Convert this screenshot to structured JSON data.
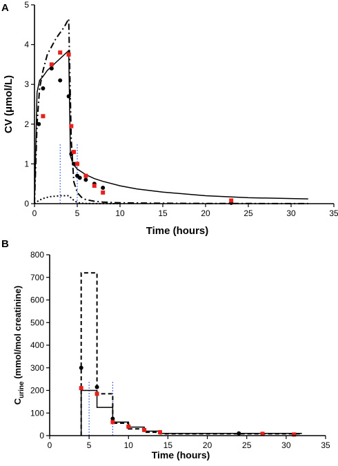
{
  "chart_data": [
    {
      "panel": "A",
      "type": "line",
      "xlabel": "Time (hours)",
      "ylabel": "CV (μmol/L)",
      "xlim": [
        0,
        35
      ],
      "ylim": [
        0,
        5
      ],
      "xticks": [
        0,
        5,
        10,
        15,
        20,
        25,
        30,
        35
      ],
      "yticks": [
        0,
        1,
        2,
        3,
        4,
        5
      ],
      "series": [
        {
          "style": "solid",
          "color": "#000000",
          "x": [
            0,
            0.3,
            0.6,
            1,
            1.5,
            2,
            2.5,
            3,
            3.5,
            4,
            4.2,
            4.5,
            5,
            6,
            7,
            8,
            10,
            12,
            15,
            20,
            25,
            32
          ],
          "y": [
            0,
            2.8,
            3.1,
            3.2,
            3.35,
            3.45,
            3.55,
            3.65,
            3.75,
            3.85,
            1.2,
            1.0,
            0.87,
            0.73,
            0.63,
            0.56,
            0.45,
            0.37,
            0.29,
            0.2,
            0.15,
            0.12
          ]
        },
        {
          "style": "dash-dot",
          "color": "#000000",
          "x": [
            0,
            0.3,
            0.6,
            1,
            1.5,
            2,
            2.5,
            3,
            3.5,
            4,
            4.3,
            4.6,
            5,
            5.5,
            6,
            7,
            8,
            10,
            15,
            20,
            25,
            32
          ],
          "y": [
            0,
            2.0,
            2.9,
            3.35,
            3.75,
            3.95,
            4.15,
            4.3,
            4.45,
            4.65,
            1.6,
            0.55,
            0.28,
            0.16,
            0.1,
            0.06,
            0.04,
            0.02,
            0.01,
            0.005,
            0.003,
            0.002
          ]
        },
        {
          "style": "dotted",
          "color": "#000000",
          "x": [
            0,
            0.5,
            1,
            1.5,
            2,
            2.5,
            3,
            3.5,
            4,
            4.5,
            5,
            5.5,
            6,
            7,
            8,
            10
          ],
          "y": [
            0,
            0.08,
            0.13,
            0.16,
            0.18,
            0.19,
            0.2,
            0.2,
            0.2,
            0.1,
            0.03,
            0.01,
            0.005,
            0.002,
            0.001,
            0
          ]
        }
      ],
      "points": [
        {
          "name": "black",
          "color": "#000000",
          "shape": "circle",
          "x": [
            0.5,
            1,
            2,
            3,
            4,
            4.3,
            4.6,
            5,
            5.3,
            6,
            7,
            8,
            23
          ],
          "y": [
            2.0,
            2.9,
            3.4,
            3.1,
            2.7,
            1.25,
            1.0,
            0.7,
            0.65,
            0.6,
            0.5,
            0.4,
            0.02
          ]
        },
        {
          "name": "red",
          "color": "#e8201c",
          "shape": "square",
          "x": [
            1,
            2,
            3,
            4,
            4.3,
            4.6,
            5,
            6,
            7,
            8,
            23
          ],
          "y": [
            2.2,
            3.5,
            3.8,
            3.75,
            1.95,
            1.3,
            1.0,
            0.7,
            0.45,
            0.28,
            0.08
          ]
        }
      ],
      "vlines": [
        {
          "x": 3,
          "ymax": 1.5,
          "color": "#3355dd"
        },
        {
          "x": 5,
          "ymax": 1.5,
          "color": "#3355dd"
        }
      ]
    },
    {
      "panel": "B",
      "type": "line",
      "xlabel": "Time (hours)",
      "ylabel": "C",
      "ylabel_sub": "urine",
      "ylabel_rest": " (mmol/mol creatinine)",
      "xlim": [
        0,
        35
      ],
      "ylim": [
        0,
        800
      ],
      "xticks": [
        0,
        5,
        10,
        15,
        20,
        25,
        30,
        35
      ],
      "yticks": [
        0,
        100,
        200,
        300,
        400,
        500,
        600,
        700,
        800
      ],
      "series": [
        {
          "style": "solid-step",
          "color": "#000000",
          "x": [
            4,
            4,
            6,
            6,
            8,
            8,
            10,
            10,
            12,
            12,
            14,
            14,
            32
          ],
          "y": [
            0,
            200,
            200,
            125,
            125,
            60,
            60,
            38,
            38,
            20,
            20,
            10,
            10
          ]
        },
        {
          "style": "dashed-step",
          "color": "#000000",
          "x": [
            4,
            4,
            6,
            6,
            8,
            8,
            10,
            10,
            12,
            12,
            14,
            14,
            32
          ],
          "y": [
            0,
            720,
            720,
            185,
            185,
            55,
            55,
            30,
            30,
            15,
            15,
            8,
            8
          ]
        }
      ],
      "points": [
        {
          "name": "black",
          "color": "#000000",
          "shape": "circle",
          "x": [
            4,
            6,
            8,
            10,
            12,
            14,
            24,
            31
          ],
          "y": [
            300,
            215,
            75,
            40,
            25,
            15,
            10,
            5
          ]
        },
        {
          "name": "red",
          "color": "#e8201c",
          "shape": "square",
          "x": [
            4,
            6,
            8,
            10,
            12,
            14,
            27,
            31
          ],
          "y": [
            210,
            185,
            60,
            40,
            25,
            15,
            8,
            5
          ]
        }
      ],
      "vlines": [
        {
          "x": 5,
          "ymax": 240,
          "color": "#3355dd"
        },
        {
          "x": 8,
          "ymax": 240,
          "color": "#3355dd"
        }
      ]
    }
  ],
  "labels": {
    "panelA": "A",
    "panelB": "B"
  }
}
